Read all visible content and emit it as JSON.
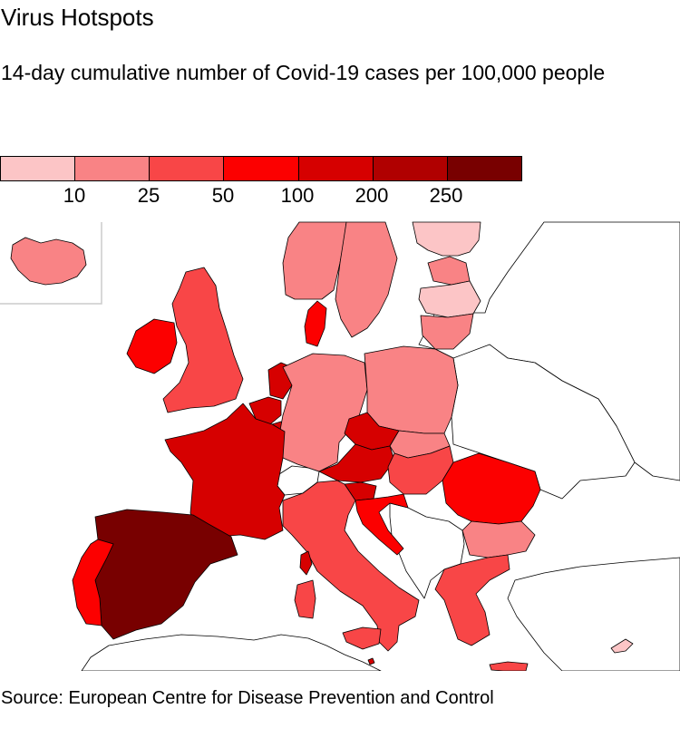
{
  "header": {
    "title": "Virus Hotspots",
    "subtitle": "14-day cumulative number of Covid-19 cases per 100,000 people"
  },
  "legend": {
    "bins": [
      {
        "color": "#fcc5c6"
      },
      {
        "color": "#f98385"
      },
      {
        "color": "#f84647"
      },
      {
        "color": "#fc0000"
      },
      {
        "color": "#d60000"
      },
      {
        "color": "#b00000"
      },
      {
        "color": "#780000"
      }
    ],
    "ticks": [
      "10",
      "25",
      "50",
      "100",
      "200",
      "250"
    ]
  },
  "map": {
    "countries": [
      {
        "name": "Iceland",
        "bin": 1
      },
      {
        "name": "Norway",
        "bin": 1
      },
      {
        "name": "Sweden",
        "bin": 1
      },
      {
        "name": "Finland",
        "bin": 0
      },
      {
        "name": "Estonia",
        "bin": 1
      },
      {
        "name": "Latvia",
        "bin": 0
      },
      {
        "name": "Lithuania",
        "bin": 1
      },
      {
        "name": "Denmark",
        "bin": 3
      },
      {
        "name": "Ireland",
        "bin": 3
      },
      {
        "name": "United Kingdom",
        "bin": 2
      },
      {
        "name": "Netherlands",
        "bin": 4
      },
      {
        "name": "Belgium",
        "bin": 4
      },
      {
        "name": "Luxembourg",
        "bin": 4
      },
      {
        "name": "France",
        "bin": 4
      },
      {
        "name": "Germany",
        "bin": 1
      },
      {
        "name": "Poland",
        "bin": 1
      },
      {
        "name": "Czechia",
        "bin": 4
      },
      {
        "name": "Slovakia",
        "bin": 1
      },
      {
        "name": "Austria",
        "bin": 4
      },
      {
        "name": "Hungary",
        "bin": 2
      },
      {
        "name": "Slovenia",
        "bin": 4
      },
      {
        "name": "Croatia",
        "bin": 3
      },
      {
        "name": "Romania",
        "bin": 3
      },
      {
        "name": "Bulgaria",
        "bin": 1
      },
      {
        "name": "Italy",
        "bin": 2
      },
      {
        "name": "Greece",
        "bin": 2
      },
      {
        "name": "Spain",
        "bin": 6
      },
      {
        "name": "Portugal",
        "bin": 3
      },
      {
        "name": "Malta",
        "bin": 4
      },
      {
        "name": "Cyprus",
        "bin": 0
      },
      {
        "name": "Switzerland",
        "bin": null
      }
    ]
  },
  "footer": {
    "source": "Source: European Centre for Disease Prevention and Control"
  }
}
